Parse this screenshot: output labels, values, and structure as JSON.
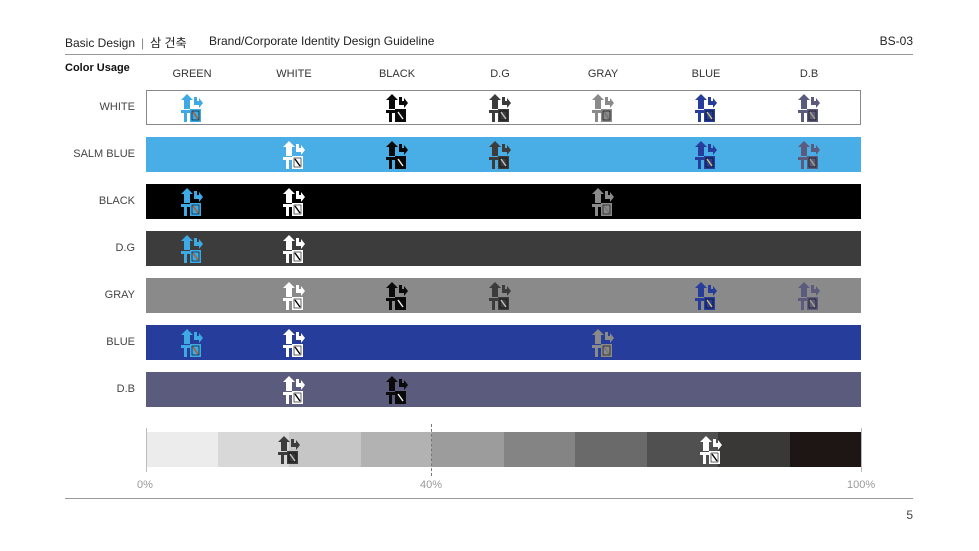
{
  "header": {
    "section": "Basic Design",
    "separator": "|",
    "korean": "삼 건축",
    "title": "Brand/Corporate Identity Design Guideline",
    "code": "BS-03"
  },
  "section_title": "Color Usage",
  "columns": [
    "GREEN",
    "WHITE",
    "BLACK",
    "D.G",
    "GRAY",
    "BLUE",
    "D.B"
  ],
  "colors": {
    "GREEN": "#3fa9e4",
    "WHITE": "#ffffff",
    "BLACK": "#0a0a0a",
    "D.G": "#3c3c3c",
    "GRAY": "#8a8a8a",
    "BLUE": "#263d9b",
    "D.B": "#5b5b7e"
  },
  "rows": [
    {
      "label": "WHITE",
      "bg": "#ffffff",
      "border": "#888888",
      "logos": [
        "GREEN",
        null,
        "BLACK",
        "D.G",
        "GRAY",
        "BLUE",
        "D.B"
      ]
    },
    {
      "label": "SALM BLUE",
      "bg": "#49aee6",
      "logos": [
        null,
        "WHITE",
        "BLACK",
        "D.G",
        null,
        "BLUE",
        "D.B"
      ]
    },
    {
      "label": "BLACK",
      "bg": "#000000",
      "logos": [
        "GREEN",
        "WHITE",
        null,
        null,
        "GRAY",
        null,
        null
      ]
    },
    {
      "label": "D.G",
      "bg": "#3c3c3c",
      "logos": [
        "GREEN",
        "WHITE",
        null,
        null,
        null,
        null,
        null
      ]
    },
    {
      "label": "GRAY",
      "bg": "#8a8a8a",
      "logos": [
        null,
        "WHITE",
        "BLACK",
        "D.G",
        null,
        "BLUE",
        "D.B"
      ]
    },
    {
      "label": "BLUE",
      "bg": "#263d9b",
      "logos": [
        "GREEN",
        "WHITE",
        null,
        null,
        "GRAY",
        null,
        null
      ]
    },
    {
      "label": "D.B",
      "bg": "#5b5b7e",
      "logos": [
        null,
        "WHITE",
        "BLACK",
        null,
        null,
        null,
        null
      ]
    }
  ],
  "gradient": {
    "steps": [
      "#ececec",
      "#d8d8d8",
      "#c6c6c6",
      "#b2b2b2",
      "#9c9c9c",
      "#848484",
      "#6a6a6a",
      "#505050",
      "#3a3737",
      "#1e1614"
    ],
    "logos": [
      {
        "position_pct": 20,
        "color": "#3c3c3c"
      },
      {
        "position_pct": 79,
        "color": "#ffffff"
      }
    ],
    "labels": {
      "start": "0%",
      "mid": "40%",
      "end": "100%"
    },
    "mid_pct": 40
  },
  "page_number": "5"
}
